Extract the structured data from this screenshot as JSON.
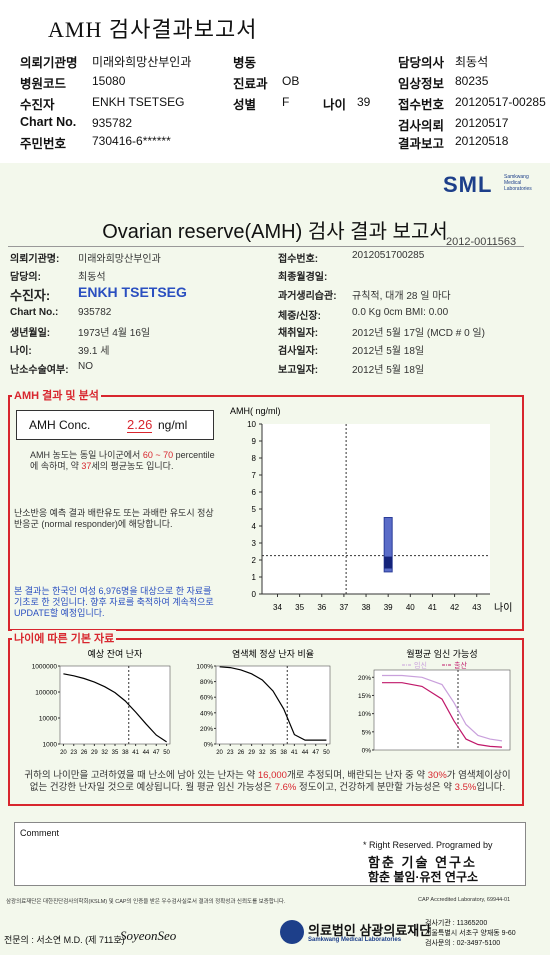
{
  "header": {
    "title": "AMH 검사결과보고서",
    "fields": [
      {
        "label": "의뢰기관명",
        "value": "미래와희망산부인과"
      },
      {
        "label": "병동"
      },
      {
        "label": "담당의사",
        "value": "최동석"
      },
      {
        "label": "병원코드",
        "value": "15080"
      },
      {
        "label": "진료과",
        "value": "OB"
      },
      {
        "label": "임상정보",
        "value": "80235"
      },
      {
        "label": "수진자",
        "value": "ENKH TSETSEG"
      },
      {
        "label": "성별",
        "value": "F"
      },
      {
        "label": "나이",
        "value": "39"
      },
      {
        "label": "접수번호",
        "value": "20120517-00285"
      },
      {
        "label": "Chart No.",
        "value": "935782"
      },
      {
        "label": "검사의뢰",
        "value": "20120517"
      },
      {
        "label": "주민번호",
        "value": "730416-6******"
      },
      {
        "label": "결과보고",
        "value": "20120518"
      }
    ]
  },
  "report": {
    "logo": "SML",
    "logo_sub": "Samkwang Medical Laboratories",
    "title": "Ovarian reserve(AMH) 검사 결과 보고서",
    "number": "2012-0011563",
    "patient_left": [
      {
        "label": "의뢰기관명:",
        "value": "미래와희망산부인과"
      },
      {
        "label": "담당의:",
        "value": "최동석"
      },
      {
        "label": "수진자:",
        "value": "ENKH TSETSEG"
      },
      {
        "label": "Chart No.:",
        "value": "935782"
      },
      {
        "label": "생년월일:",
        "value": "1973년 4월 16일"
      },
      {
        "label": "나이:",
        "value": "39.1 세"
      },
      {
        "label": "난소수술여부:",
        "value": "NO"
      }
    ],
    "patient_right": [
      {
        "label": "접수번호:",
        "value": "2012051700285"
      },
      {
        "label": "최종월경일:"
      },
      {
        "label": "과거생리습관:",
        "value": "규칙적, 대개 28 일 마다"
      },
      {
        "label": "체중/신장:",
        "value": "0.0 Kg    0cm   BMI:  0.00"
      },
      {
        "label": "채취일자:",
        "value": "2012년 5월 17일  (MCD # 0 일)"
      },
      {
        "label": "검사일자:",
        "value": "2012년 5월 18일"
      },
      {
        "label": "보고일자:",
        "value": "2012년 5월 18일"
      }
    ],
    "amh_section": "AMH 결과 및 분석",
    "amh_label": "AMH Conc.",
    "amh_value": "2.26",
    "amh_unit": "ng/ml",
    "para1": [
      "AMH 농도는 동일 나이군에서 ",
      "60 ~ 70",
      " percentile에 속하며, 약 ",
      "37",
      "세의 평균농도 입니다."
    ],
    "para2": "난소반응 예측 결과 배란유도 또는 과배란 유도시 정상반응군 (normal responder)에 해당합니다.",
    "para3": "본 결과는 한국인 여성 6,976명을 대상으로 한 자료를 기초로 한 것입니다. 향후 자료를 축적하여 계속적으로 UPDATE할 예정입니다.",
    "amh_chart": {
      "y_label": "AMH( ng/ml)",
      "x_label": "나이",
      "xlim": [
        33.3,
        43.6
      ],
      "ylim": [
        0,
        10
      ],
      "xticks": [
        34,
        35,
        36,
        37,
        38,
        39,
        40,
        41,
        42,
        43
      ],
      "yticks": [
        0,
        1,
        2,
        3,
        4,
        5,
        6,
        7,
        8,
        9,
        10
      ],
      "range": {
        "x": 39,
        "low": 1.3,
        "high": 4.5
      },
      "box": {
        "low": 1.5,
        "high": 2.2
      },
      "marker": {
        "x": 37.1,
        "y": 2.26
      }
    },
    "basic_section": "나이에 따른 기본 자료",
    "charts": [
      {
        "title": "예상 잔여 난자",
        "log": true,
        "xlim": [
          19,
          51
        ],
        "ylim": [
          1000,
          1000000
        ],
        "yticks": [
          1000,
          10000,
          100000,
          1000000
        ],
        "xticks": [
          20,
          23,
          26,
          29,
          32,
          35,
          38,
          41,
          44,
          47,
          50
        ],
        "x": [
          20,
          23,
          26,
          29,
          32,
          35,
          38,
          41,
          44,
          47,
          50
        ],
        "marker_x": 39,
        "series": [
          {
            "color": "#000000",
            "values": [
              500000,
              420000,
              330000,
              240000,
              160000,
              95000,
              45000,
              17000,
              6000,
              2200,
              1200
            ]
          }
        ]
      },
      {
        "title": "염색체 정상 난자 비율",
        "xlim": [
          19,
          51
        ],
        "ylim": [
          0,
          100
        ],
        "yticks": [
          {
            "value": 0,
            "label": "0%"
          },
          {
            "value": 20,
            "label": "20%"
          },
          {
            "value": 40,
            "label": "40%"
          },
          {
            "value": 60,
            "label": "60%"
          },
          {
            "value": 80,
            "label": "80%"
          },
          {
            "value": 100,
            "label": "100%"
          }
        ],
        "xticks": [
          20,
          23,
          26,
          29,
          32,
          35,
          38,
          41,
          44,
          47,
          50
        ],
        "x": [
          20,
          23,
          26,
          29,
          32,
          35,
          38,
          41,
          44,
          47,
          50
        ],
        "marker_x": 39,
        "series": [
          {
            "color": "#000000",
            "values": [
              99,
              98,
              95,
              90,
              82,
              68,
              45,
              12,
              5,
              5,
              5
            ]
          }
        ]
      },
      {
        "title": "월평균 임신 가능성",
        "xlim": [
          18,
          52
        ],
        "ylim": [
          0,
          22
        ],
        "yticks": [
          {
            "value": 0,
            "label": "0%"
          },
          {
            "value": 5,
            "label": "5%"
          },
          {
            "value": 10,
            "label": "10%"
          },
          {
            "value": 15,
            "label": "15%"
          },
          {
            "value": 20,
            "label": "20%"
          }
        ],
        "x": [
          20,
          25,
          30,
          35,
          38,
          41,
          44,
          47,
          50
        ],
        "marker_x": 39,
        "series": [
          {
            "name": "임신",
            "color": "#c9a0dc",
            "values": [
              20.5,
              20.5,
              20,
              18,
              13,
              7,
              4,
              3,
              2.5
            ]
          },
          {
            "name": "출산",
            "color": "#c0186a",
            "values": [
              18.5,
              18.5,
              17.5,
              14,
              8,
              3,
              1.5,
              1,
              0.8
            ]
          }
        ]
      }
    ],
    "summary": [
      "귀하의 나이만을 고려하였을 때 난소에 남아 있는 난자는 약 ",
      "16,000",
      "개로 추정되며, 배란되는 난자 중 약 ",
      "30%",
      "가 염색체이상이 없는 건강한 난자일 것으로 예상됩니다. 월 평균 임신 가능성은 ",
      "7.6%",
      " 정도이고, 건강하게 분만할 가능성은 약 ",
      "3.5%",
      "입니다."
    ],
    "comment": "Comment",
    "rights": "* Right Reserved. Programed by",
    "lab1": "함춘 기술 연구소",
    "lab2": "함춘 불임·유전 연구소",
    "footer_note": "삼광의료재단은 대한진단검사의학회(KSLM) 및 CAP의 인증을 받은 우수검사실로서 결과의 정확성과 신뢰도를 보증합니다.",
    "cap": "CAP Accredited Laboratory,  69944-01",
    "doctor": "전문의 : 서소연 M.D. (제 711호)",
    "signature": "SoyeonSeo",
    "foundation": "의료법인 삼광의료재단",
    "foundation_en": "Samkwang Medical Laboratories",
    "contact": [
      "검사기관 : 11365200",
      "서울특별시 서초구 양재동 9-60",
      "검사문의 : 02-3497-5100"
    ]
  }
}
